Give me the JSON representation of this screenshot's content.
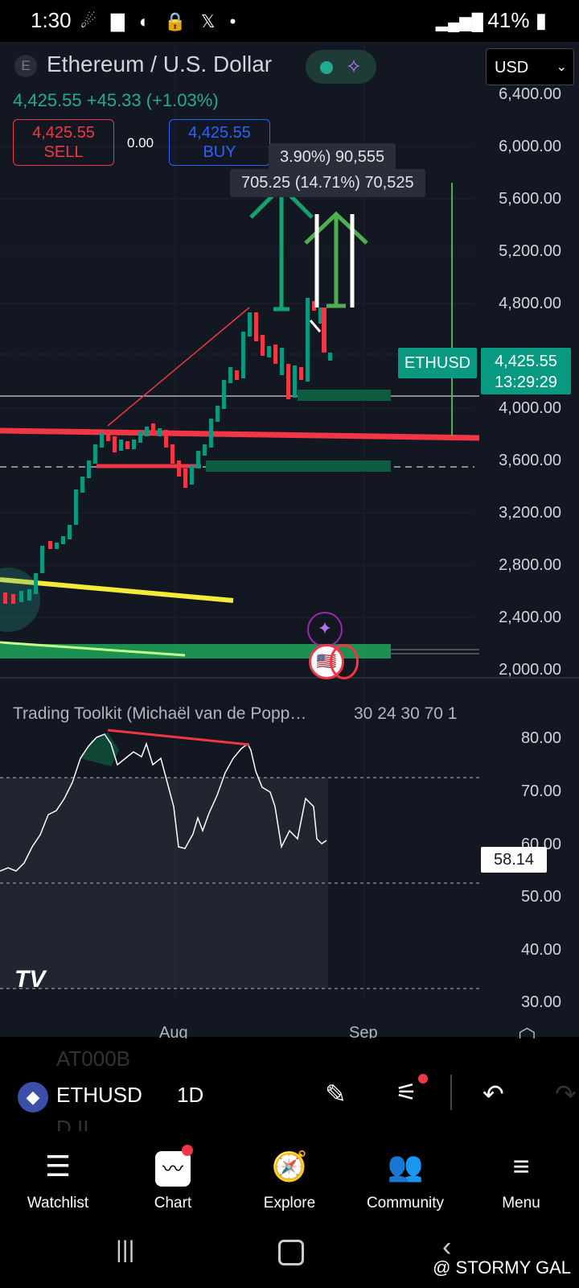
{
  "status": {
    "time": "1:30",
    "battery": "41%",
    "icons": "☄ ▇ ◐ 🔒 𝕏 •",
    "right_icons": "📶"
  },
  "header": {
    "symbol_initial": "E",
    "name": "Ethereum / U.S. Dollar",
    "currency": "USD",
    "price_line": "4,425.55  +45.33 (+1.03%)",
    "sell_price": "4,425.55",
    "sell_label": "SELL",
    "spread": "0.00",
    "buy_price": "4,425.55",
    "buy_label": "BUY"
  },
  "tooltips": {
    "top": "3.90%) 90,555",
    "second": "705.25 (14.71%) 70,525"
  },
  "price_axis": [
    "6,400.00",
    "6,000.00",
    "5,600.00",
    "5,200.00",
    "4,800.00",
    "4,000.00",
    "3,600.00",
    "3,200.00",
    "2,800.00",
    "2,400.00",
    "2,000.00"
  ],
  "price_tag": {
    "symbol": "ETHUSD",
    "price": "4,425.55",
    "countdown": "13:29:29"
  },
  "indicator": {
    "title": "Trading Toolkit (Michaël van de Popp…",
    "params": "30 24 30 70 1",
    "axis": [
      "80.00",
      "70.00",
      "60.00",
      "50.00",
      "40.00",
      "30.00"
    ],
    "value": "58.14"
  },
  "time_axis": [
    "Aug",
    "Sep"
  ],
  "symbol_bar": {
    "symbol": "ETHUSD",
    "interval": "1D",
    "ghost_top": "AT000B",
    "ghost_bottom": "D.II"
  },
  "nav": [
    {
      "label": "Watchlist",
      "icon": "watchlist-icon"
    },
    {
      "label": "Chart",
      "icon": "chart-icon"
    },
    {
      "label": "Explore",
      "icon": "compass-icon"
    },
    {
      "label": "Community",
      "icon": "people-icon"
    },
    {
      "label": "Menu",
      "icon": "menu-icon"
    }
  ],
  "watermark": "@ STORMY GAL",
  "colors": {
    "up": "#089981",
    "down": "#f23645",
    "accent": "#2962ff",
    "bg": "#131722"
  }
}
